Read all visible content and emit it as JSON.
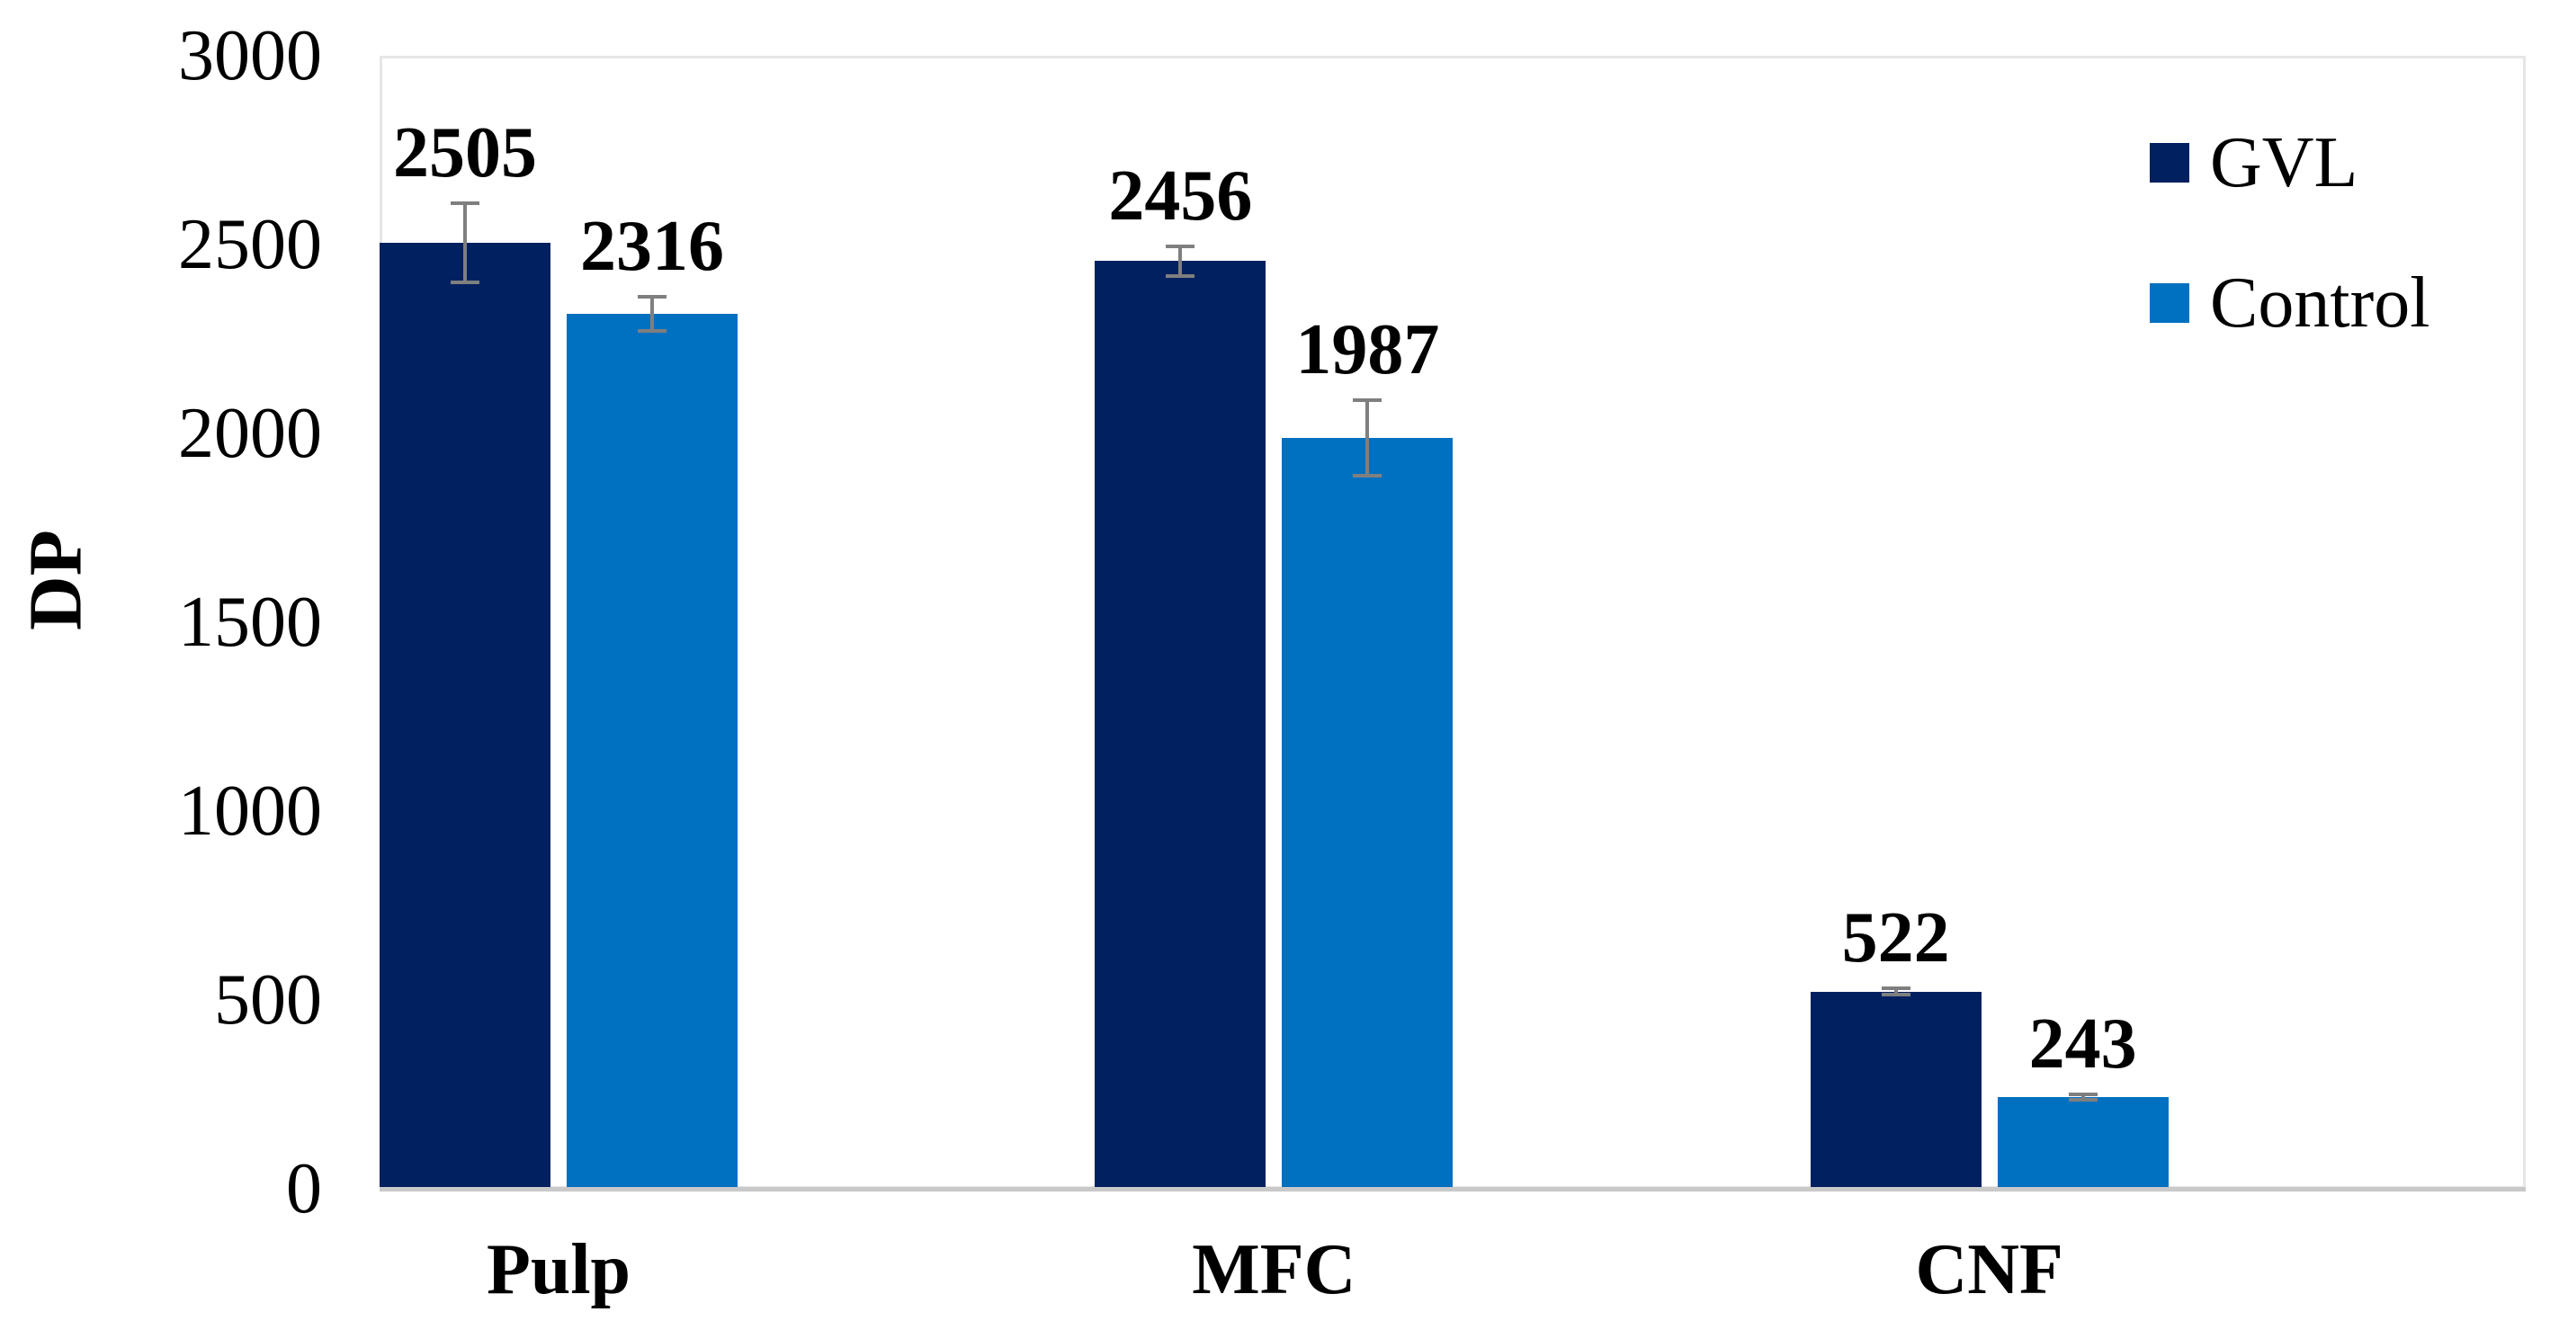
{
  "chart_data": {
    "type": "bar",
    "title": "",
    "ylabel": "DP",
    "categories": [
      "Pulp",
      "MFC",
      "CNF"
    ],
    "series": [
      {
        "name": "GVL",
        "color": "#002060",
        "values": [
          2505,
          2456,
          522
        ],
        "errors": [
          105,
          40,
          8
        ]
      },
      {
        "name": "Control",
        "color": "#0070C0",
        "values": [
          2316,
          1987,
          243
        ],
        "errors": [
          45,
          100,
          8
        ]
      }
    ],
    "ylim": [
      0,
      3000
    ],
    "yticks": [
      0,
      500,
      1000,
      1500,
      2000,
      2500,
      3000
    ],
    "grid": false,
    "legend": {
      "position": "top-right",
      "entries": [
        "GVL",
        "Control"
      ]
    },
    "colors": {
      "error_bar": "#7f7f7f",
      "axis_line": "#c9c9c9",
      "plot_border": "#e6e6e6",
      "text": "#000000",
      "background": "#ffffff"
    }
  }
}
